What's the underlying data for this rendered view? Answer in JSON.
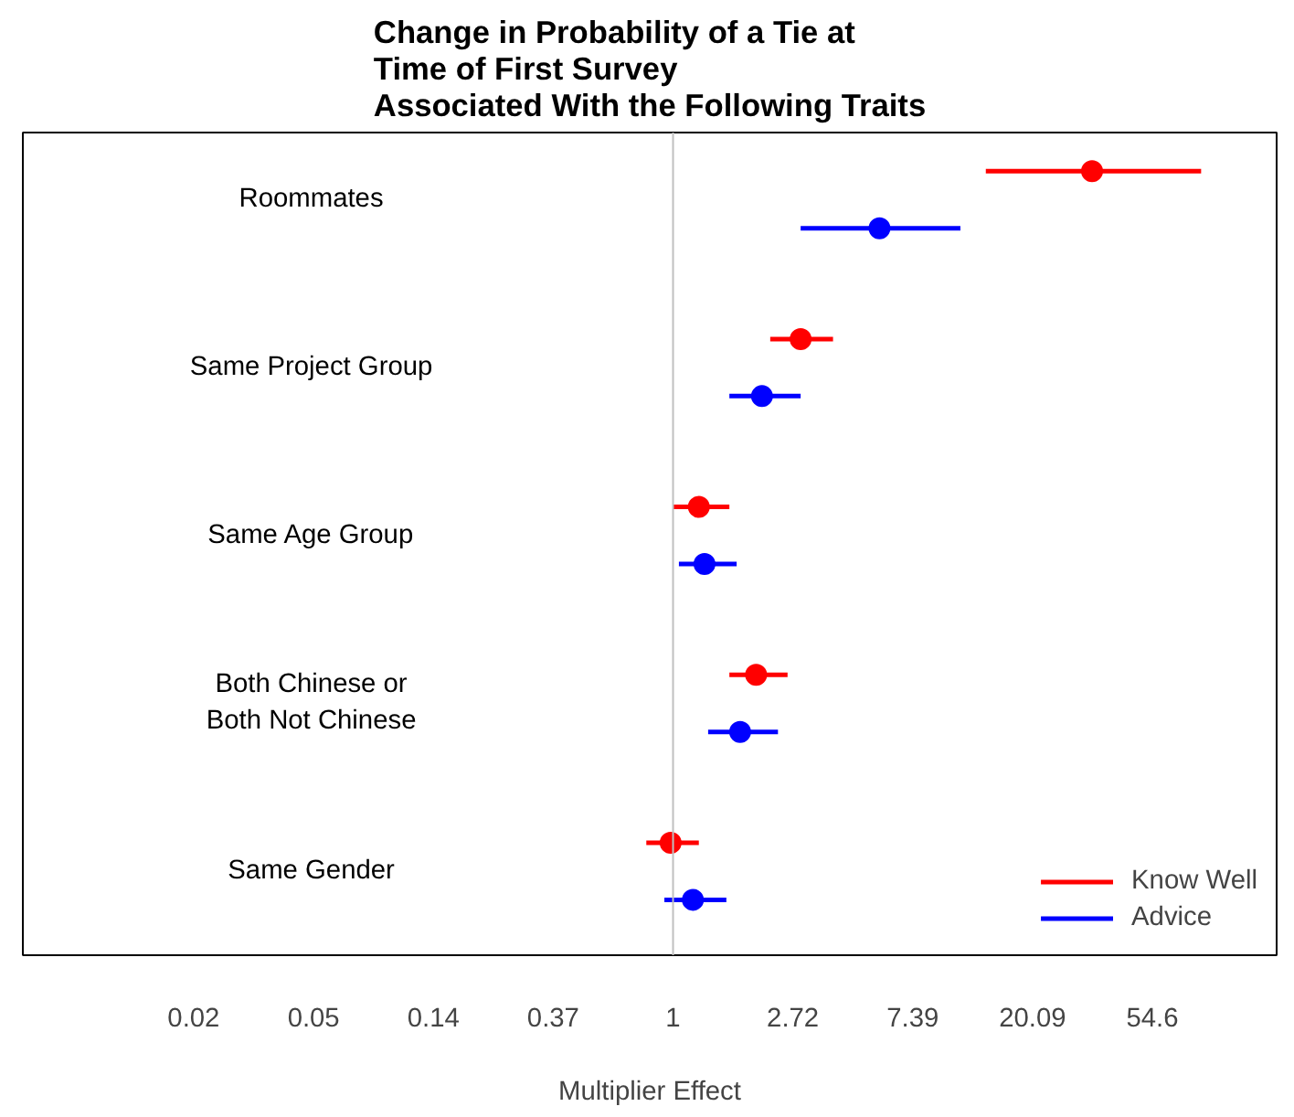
{
  "chart_data": {
    "type": "scatter",
    "orientation": "horizontal",
    "log": "x",
    "title": "Change in Probability of a Tie at\nTime of First Survey\nAssociated With the Following Traits",
    "xlabel": "Multiplier Effect",
    "categories": [
      "Roommates",
      "Same Project Group",
      "Same Age Group",
      "Both Chinese or\nBoth Not Chinese",
      "Same Gender"
    ],
    "series": [
      {
        "name": "Know Well",
        "color": "#ff0000",
        "values": [
          33,
          2.9,
          1.24,
          2.0,
          0.98
        ],
        "errors": [
          [
            13.6,
            82
          ],
          [
            2.25,
            3.8
          ],
          [
            1.0,
            1.6
          ],
          [
            1.6,
            2.6
          ],
          [
            0.8,
            1.24
          ]
        ]
      },
      {
        "name": "Advice",
        "color": "#0000ff",
        "values": [
          5.6,
          2.1,
          1.3,
          1.75,
          1.18
        ],
        "errors": [
          [
            2.9,
            11.0
          ],
          [
            1.6,
            2.9
          ],
          [
            1.05,
            1.7
          ],
          [
            1.34,
            2.4
          ],
          [
            0.93,
            1.56
          ]
        ]
      }
    ],
    "xlim": [
      0.0044,
      154
    ],
    "xticks": [
      {
        "value": 0.0183,
        "label": "0.02"
      },
      {
        "value": 0.0498,
        "label": "0.05"
      },
      {
        "value": 0.1353,
        "label": "0.14"
      },
      {
        "value": 0.3679,
        "label": "0.37"
      },
      1,
      {
        "value": 2.718,
        "label": "2.72"
      },
      {
        "value": 7.389,
        "label": "7.39"
      },
      {
        "value": 20.086,
        "label": "20.09"
      },
      54.6
    ],
    "ref_lines": [
      {
        "axis": "x",
        "value": 1,
        "color": "#c0c0c0"
      }
    ],
    "tick_labels": "x",
    "grid": false,
    "legend": "bottom right",
    "marker": "circle"
  }
}
